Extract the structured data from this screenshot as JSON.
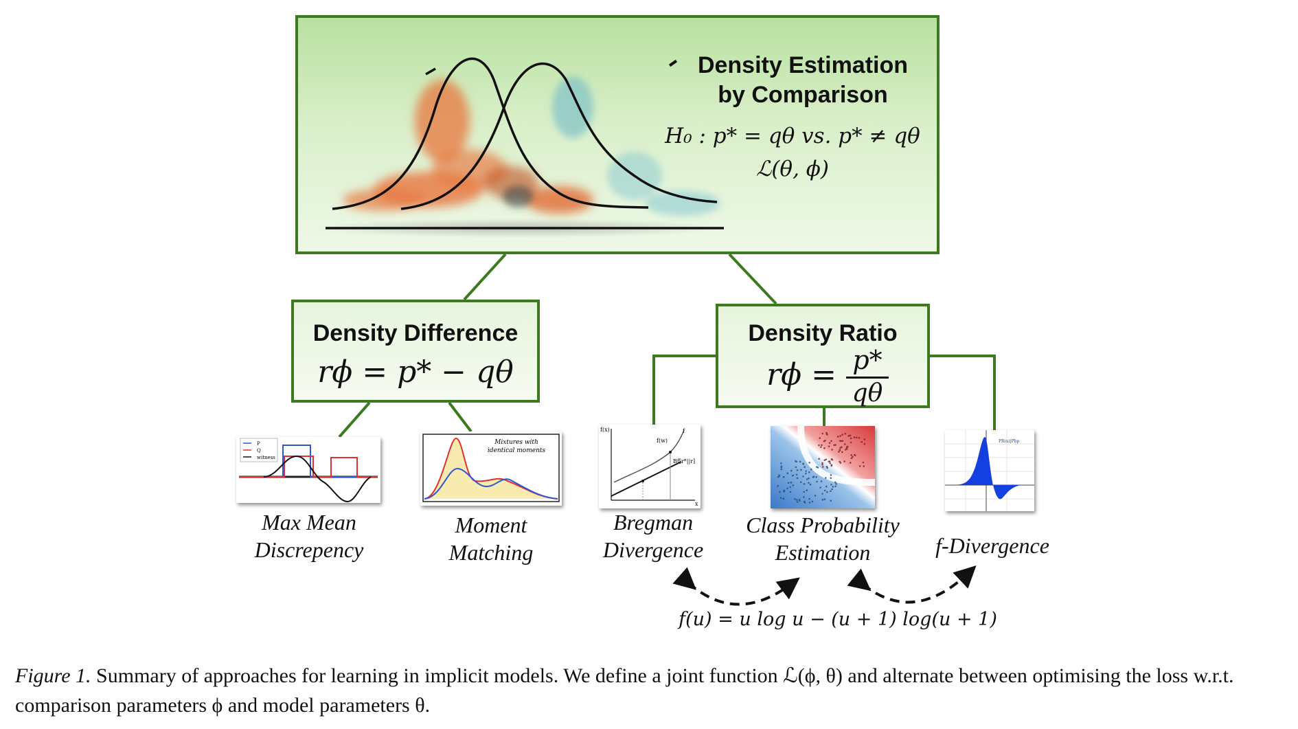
{
  "top": {
    "heading_line1": "Density Estimation",
    "heading_line2": "by Comparison",
    "hypothesis": "H₀ : p* = qθ vs. p* ≠ qθ",
    "loss": "ℒ(θ, ϕ)"
  },
  "difference": {
    "heading": "Density Difference",
    "formula_lhs": "rϕ = p* − qθ"
  },
  "ratio": {
    "heading": "Density Ratio",
    "formula_lhs": "rϕ =",
    "formula_num": "p*",
    "formula_den": "qθ"
  },
  "methods": [
    {
      "line1": "Max Mean",
      "line2": "Discrepency",
      "thumb_legend": [
        "P",
        "Q",
        "witness"
      ]
    },
    {
      "line1": "Moment",
      "line2": "Matching",
      "thumb_text1": "Mixtures with",
      "thumb_text2": "identical moments"
    },
    {
      "line1": "Bregman",
      "line2": "Divergence",
      "thumb_labels": [
        "f(x)",
        "f(w)",
        "f",
        "Bf[r*||r]",
        "x"
      ]
    },
    {
      "line1": "Class Probability",
      "line2": "Estimation"
    },
    {
      "line1": "f-Divergence",
      "thumb_label": "PR(x)|Pbp"
    }
  ],
  "equivalence": "f(u) = u log u − (u + 1) log(u + 1)",
  "caption": {
    "figure_label": "Figure 1.",
    "text": " Summary of approaches for learning in implicit models. We define a joint function ℒ(ϕ, θ) and alternate between optimising the loss w.r.t. comparison parameters ϕ and model parameters θ."
  },
  "colors": {
    "box_border": "#3d7a1f",
    "orange": "#e8773e",
    "teal": "#8ccbd0"
  }
}
